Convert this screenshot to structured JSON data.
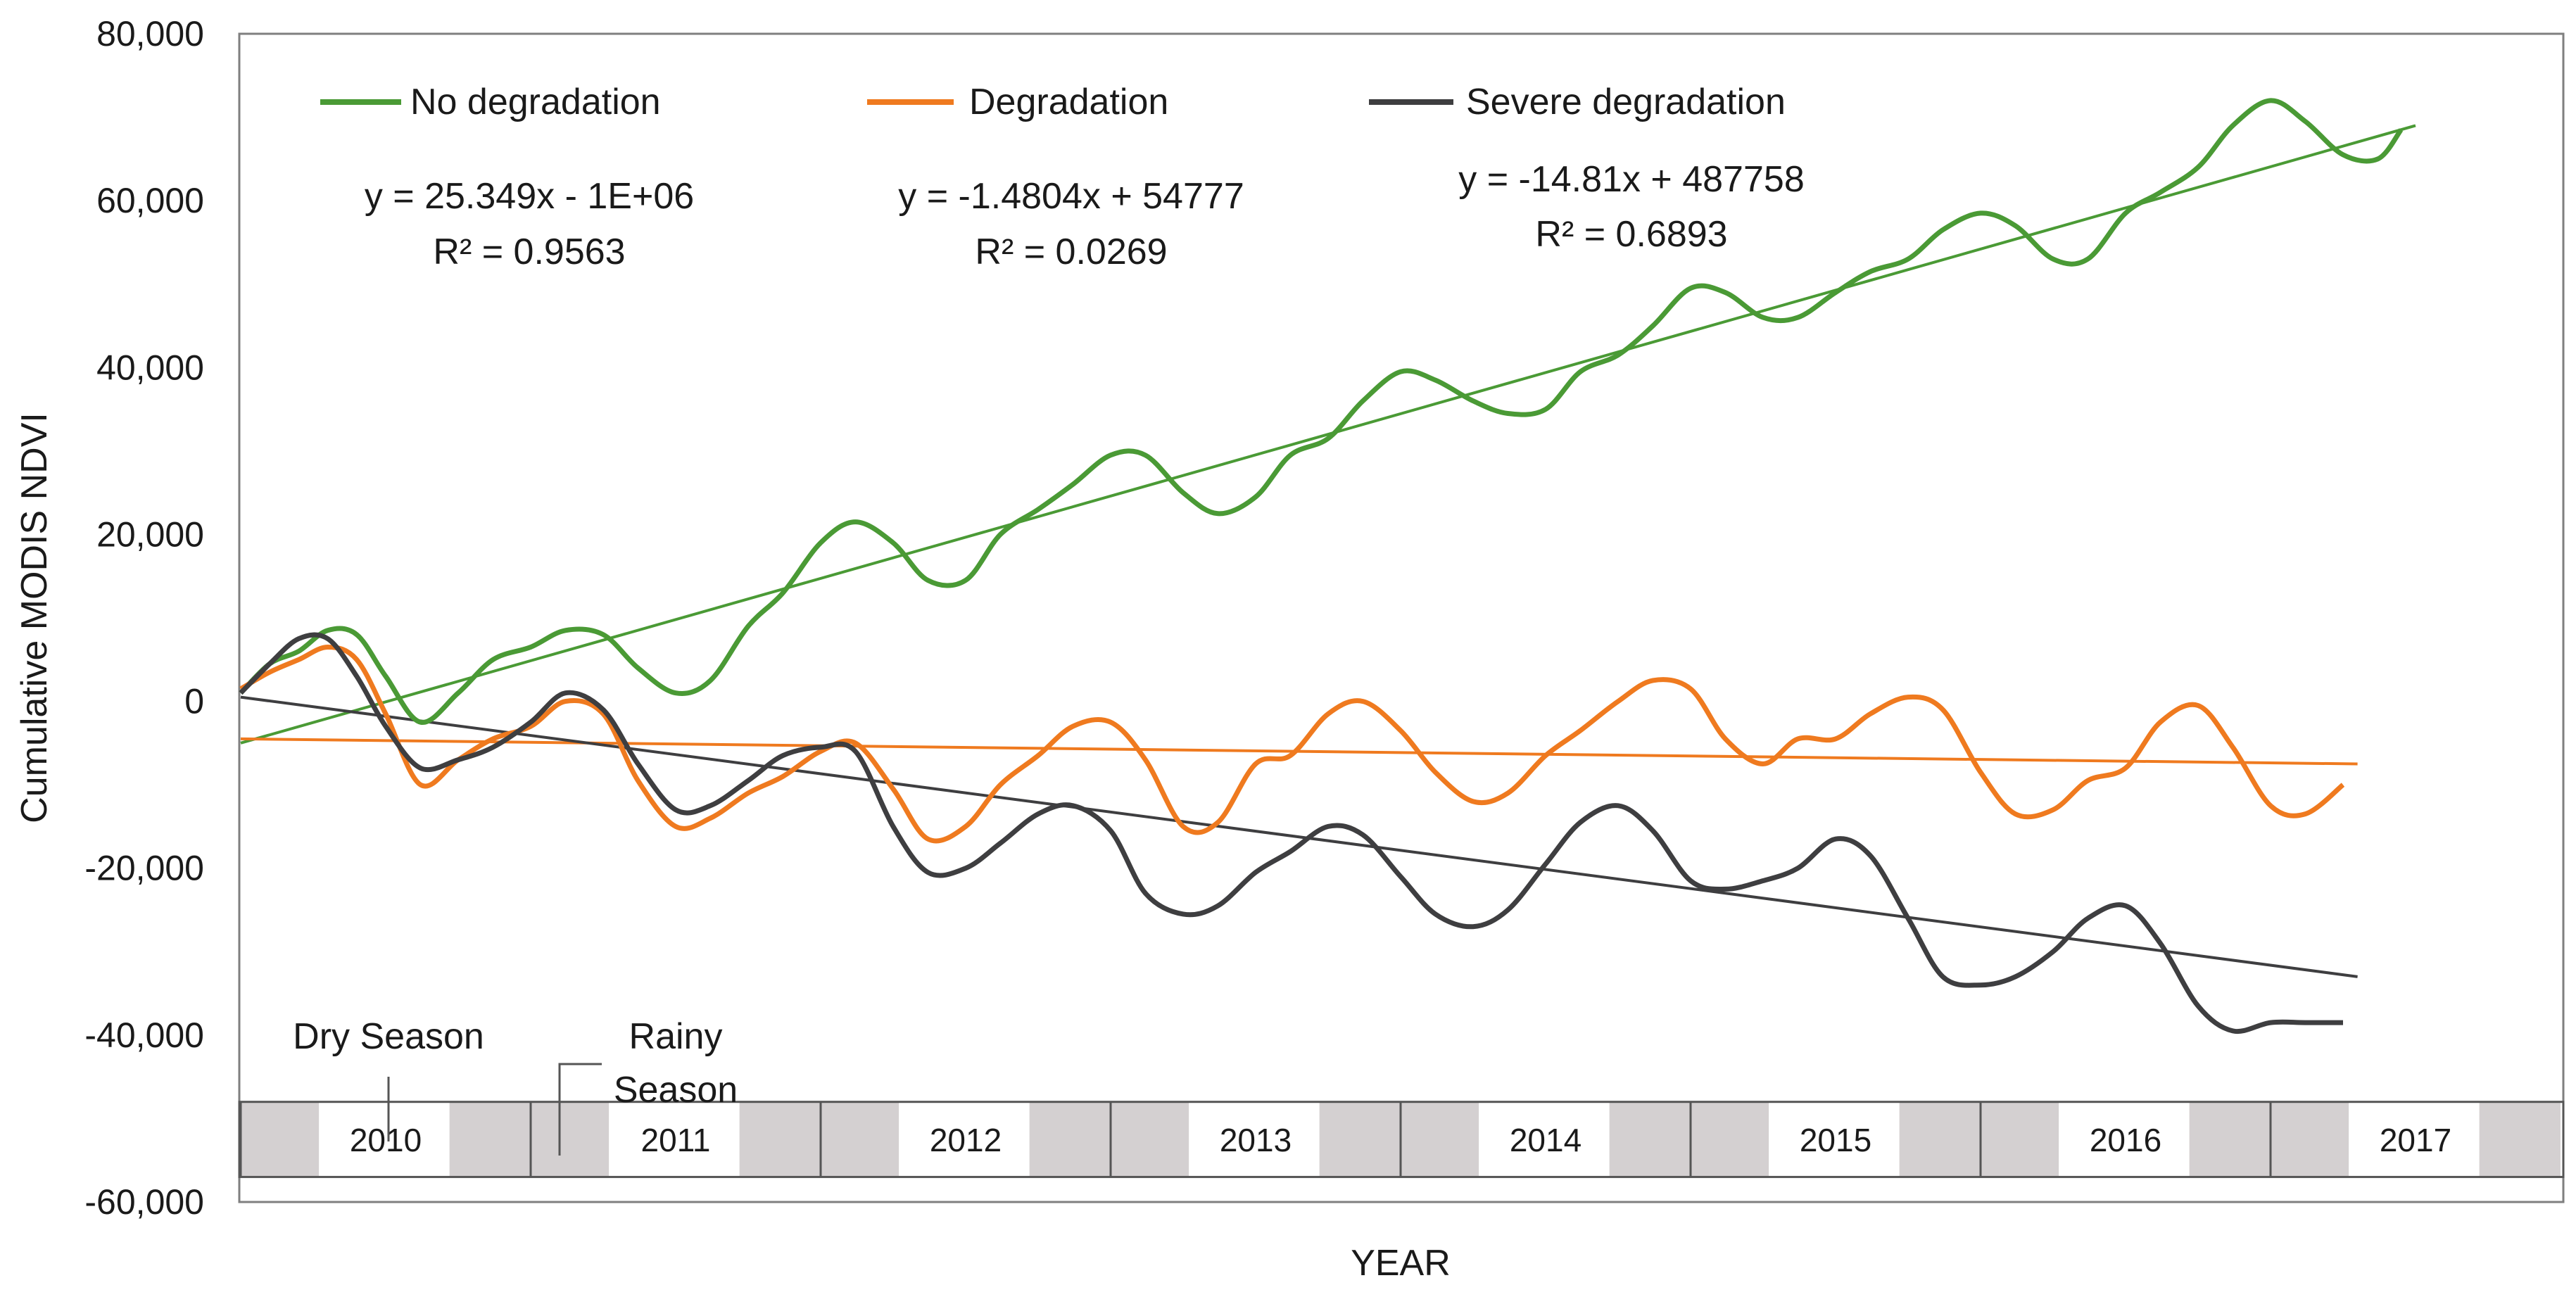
{
  "chart_data": {
    "type": "line",
    "xlabel": "YEAR",
    "ylabel": "Cumulative MODIS NDVI",
    "ylim": [
      -60000,
      80000
    ],
    "y_ticks": [
      80000,
      60000,
      40000,
      20000,
      0,
      -20000,
      -40000,
      -60000
    ],
    "y_tick_labels": [
      "80,000",
      "60,000",
      "40,000",
      "20,000",
      "0",
      "-20,000",
      "-40,000",
      "-60,000"
    ],
    "x_start": 2010.0,
    "x_end": 2018.0,
    "years": [
      "2010",
      "2011",
      "2012",
      "2013",
      "2014",
      "2015",
      "2016",
      "2017"
    ],
    "season_annotations": {
      "dry": "Dry Season",
      "rainy_line1": "Rainy",
      "rainy_line2": "Season"
    },
    "colors": {
      "no_degradation": "#4a9a35",
      "degradation": "#ef7a1f",
      "severe_degradation": "#3e3e40",
      "dry_band": "#d4d0d1",
      "rainy_band": "#ffffff",
      "axis": "#7f7f7f"
    },
    "series": [
      {
        "name": "No degradation",
        "color": "#4a9a35",
        "trend_equation": "y = 25.349x - 1E+06",
        "r2_label": "R² = 0.9563",
        "trend_y": [
          -5000,
          69000
        ],
        "points": [
          [
            2010.0,
            1000
          ],
          [
            2010.1,
            4500
          ],
          [
            2010.2,
            6000
          ],
          [
            2010.3,
            8500
          ],
          [
            2010.4,
            8000
          ],
          [
            2010.5,
            3000
          ],
          [
            2010.62,
            -2500
          ],
          [
            2010.75,
            1000
          ],
          [
            2010.87,
            5000
          ],
          [
            2011.0,
            6500
          ],
          [
            2011.12,
            8500
          ],
          [
            2011.25,
            8000
          ],
          [
            2011.37,
            4000
          ],
          [
            2011.5,
            1000
          ],
          [
            2011.62,
            2500
          ],
          [
            2011.75,
            9000
          ],
          [
            2011.87,
            13000
          ],
          [
            2012.0,
            19000
          ],
          [
            2012.12,
            21500
          ],
          [
            2012.25,
            19000
          ],
          [
            2012.37,
            14500
          ],
          [
            2012.5,
            14500
          ],
          [
            2012.62,
            20000
          ],
          [
            2012.75,
            23000
          ],
          [
            2012.87,
            26000
          ],
          [
            2013.0,
            29500
          ],
          [
            2013.12,
            29500
          ],
          [
            2013.25,
            25000
          ],
          [
            2013.37,
            22500
          ],
          [
            2013.5,
            24500
          ],
          [
            2013.62,
            29500
          ],
          [
            2013.75,
            31500
          ],
          [
            2013.87,
            36000
          ],
          [
            2014.0,
            39500
          ],
          [
            2014.12,
            38500
          ],
          [
            2014.25,
            36000
          ],
          [
            2014.37,
            34500
          ],
          [
            2014.5,
            35000
          ],
          [
            2014.62,
            39500
          ],
          [
            2014.75,
            41500
          ],
          [
            2014.87,
            45000
          ],
          [
            2015.0,
            49500
          ],
          [
            2015.12,
            49000
          ],
          [
            2015.25,
            46000
          ],
          [
            2015.37,
            46000
          ],
          [
            2015.5,
            49000
          ],
          [
            2015.62,
            51500
          ],
          [
            2015.75,
            53000
          ],
          [
            2015.87,
            56500
          ],
          [
            2016.0,
            58500
          ],
          [
            2016.12,
            57000
          ],
          [
            2016.25,
            53000
          ],
          [
            2016.37,
            53000
          ],
          [
            2016.5,
            58500
          ],
          [
            2016.62,
            61000
          ],
          [
            2016.75,
            64000
          ],
          [
            2016.87,
            69000
          ],
          [
            2017.0,
            72000
          ],
          [
            2017.12,
            69500
          ],
          [
            2017.25,
            65500
          ],
          [
            2017.37,
            65000
          ],
          [
            2017.45,
            68500
          ]
        ]
      },
      {
        "name": "Degradation",
        "color": "#ef7a1f",
        "trend_equation": "y = -1.4804x + 54777",
        "r2_label": "R² = 0.0269",
        "trend_y": [
          -4500,
          -7500
        ],
        "points": [
          [
            2010.0,
            1500
          ],
          [
            2010.1,
            3500
          ],
          [
            2010.2,
            5000
          ],
          [
            2010.3,
            6500
          ],
          [
            2010.4,
            5000
          ],
          [
            2010.5,
            -1500
          ],
          [
            2010.62,
            -10000
          ],
          [
            2010.75,
            -7000
          ],
          [
            2010.87,
            -4500
          ],
          [
            2011.0,
            -3000
          ],
          [
            2011.12,
            0
          ],
          [
            2011.25,
            -1500
          ],
          [
            2011.37,
            -9500
          ],
          [
            2011.5,
            -15000
          ],
          [
            2011.62,
            -14000
          ],
          [
            2011.75,
            -11000
          ],
          [
            2011.87,
            -9000
          ],
          [
            2012.0,
            -6000
          ],
          [
            2012.12,
            -5000
          ],
          [
            2012.25,
            -10500
          ],
          [
            2012.37,
            -16500
          ],
          [
            2012.5,
            -15000
          ],
          [
            2012.62,
            -10000
          ],
          [
            2012.75,
            -6500
          ],
          [
            2012.87,
            -3000
          ],
          [
            2013.0,
            -2500
          ],
          [
            2013.12,
            -7000
          ],
          [
            2013.25,
            -15000
          ],
          [
            2013.37,
            -14500
          ],
          [
            2013.5,
            -7500
          ],
          [
            2013.62,
            -6500
          ],
          [
            2013.75,
            -1500
          ],
          [
            2013.87,
            0
          ],
          [
            2014.0,
            -3500
          ],
          [
            2014.12,
            -8500
          ],
          [
            2014.25,
            -12000
          ],
          [
            2014.37,
            -11000
          ],
          [
            2014.5,
            -6500
          ],
          [
            2014.62,
            -3500
          ],
          [
            2014.75,
            0
          ],
          [
            2014.87,
            2500
          ],
          [
            2015.0,
            1500
          ],
          [
            2015.12,
            -4500
          ],
          [
            2015.25,
            -7500
          ],
          [
            2015.37,
            -4500
          ],
          [
            2015.5,
            -4500
          ],
          [
            2015.62,
            -1500
          ],
          [
            2015.75,
            500
          ],
          [
            2015.87,
            -1000
          ],
          [
            2016.0,
            -8500
          ],
          [
            2016.12,
            -13500
          ],
          [
            2016.25,
            -13000
          ],
          [
            2016.37,
            -9500
          ],
          [
            2016.5,
            -8000
          ],
          [
            2016.62,
            -2500
          ],
          [
            2016.75,
            -500
          ],
          [
            2016.87,
            -5500
          ],
          [
            2017.0,
            -12500
          ],
          [
            2017.12,
            -13500
          ],
          [
            2017.25,
            -10000
          ]
        ]
      },
      {
        "name": "Severe degradation",
        "color": "#3e3e40",
        "trend_equation": "y = -14.81x + 487758",
        "r2_label": "R² = 0.6893",
        "trend_y": [
          500,
          -33000
        ],
        "points": [
          [
            2010.0,
            1000
          ],
          [
            2010.1,
            4500
          ],
          [
            2010.2,
            7500
          ],
          [
            2010.3,
            7500
          ],
          [
            2010.4,
            3000
          ],
          [
            2010.5,
            -3000
          ],
          [
            2010.62,
            -8000
          ],
          [
            2010.75,
            -7000
          ],
          [
            2010.87,
            -5500
          ],
          [
            2011.0,
            -2500
          ],
          [
            2011.12,
            1000
          ],
          [
            2011.25,
            -1000
          ],
          [
            2011.37,
            -7500
          ],
          [
            2011.5,
            -13000
          ],
          [
            2011.62,
            -12500
          ],
          [
            2011.75,
            -9500
          ],
          [
            2011.87,
            -6500
          ],
          [
            2012.0,
            -5500
          ],
          [
            2012.12,
            -6000
          ],
          [
            2012.25,
            -15000
          ],
          [
            2012.37,
            -20500
          ],
          [
            2012.5,
            -20000
          ],
          [
            2012.62,
            -17000
          ],
          [
            2012.75,
            -13500
          ],
          [
            2012.87,
            -12500
          ],
          [
            2013.0,
            -15500
          ],
          [
            2013.12,
            -23000
          ],
          [
            2013.25,
            -25500
          ],
          [
            2013.37,
            -24500
          ],
          [
            2013.5,
            -20500
          ],
          [
            2013.62,
            -18000
          ],
          [
            2013.75,
            -15000
          ],
          [
            2013.87,
            -16000
          ],
          [
            2014.0,
            -21000
          ],
          [
            2014.12,
            -25500
          ],
          [
            2014.25,
            -27000
          ],
          [
            2014.37,
            -25000
          ],
          [
            2014.5,
            -19500
          ],
          [
            2014.62,
            -14500
          ],
          [
            2014.75,
            -12500
          ],
          [
            2014.87,
            -15500
          ],
          [
            2015.0,
            -21500
          ],
          [
            2015.12,
            -22500
          ],
          [
            2015.25,
            -21500
          ],
          [
            2015.37,
            -20000
          ],
          [
            2015.5,
            -16500
          ],
          [
            2015.62,
            -18500
          ],
          [
            2015.75,
            -26000
          ],
          [
            2015.87,
            -33000
          ],
          [
            2016.0,
            -34000
          ],
          [
            2016.12,
            -33000
          ],
          [
            2016.25,
            -30000
          ],
          [
            2016.37,
            -26000
          ],
          [
            2016.5,
            -24500
          ],
          [
            2016.62,
            -29000
          ],
          [
            2016.75,
            -36500
          ],
          [
            2016.87,
            -39500
          ],
          [
            2017.0,
            -38500
          ],
          [
            2017.12,
            -38500
          ],
          [
            2017.25,
            -38500
          ]
        ]
      }
    ]
  }
}
